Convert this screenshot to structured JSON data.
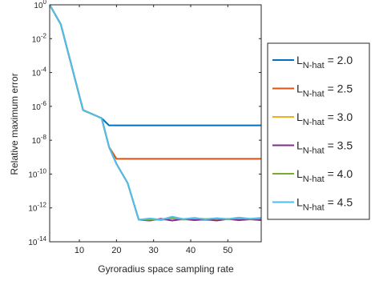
{
  "chart_data": {
    "type": "line",
    "xlabel": "Gyroradius space sampling rate",
    "ylabel": "Relative maximum error",
    "xlim": [
      2,
      59
    ],
    "ylim": [
      1e-14,
      1
    ],
    "yscale": "log",
    "grid": false,
    "legend_position": "outside-right",
    "xticks": [
      {
        "value": 10,
        "label": "10"
      },
      {
        "value": 20,
        "label": "20"
      },
      {
        "value": 30,
        "label": "30"
      },
      {
        "value": 40,
        "label": "40"
      },
      {
        "value": 50,
        "label": "50"
      }
    ],
    "yticks": [
      {
        "value": 1,
        "base": "10",
        "exp": "0"
      },
      {
        "value": 0.01,
        "base": "10",
        "exp": "-2"
      },
      {
        "value": 0.0001,
        "base": "10",
        "exp": "-4"
      },
      {
        "value": 1e-06,
        "base": "10",
        "exp": "-6"
      },
      {
        "value": 1e-08,
        "base": "10",
        "exp": "-8"
      },
      {
        "value": 1e-10,
        "base": "10",
        "exp": "-10"
      },
      {
        "value": 1e-12,
        "base": "10",
        "exp": "-12"
      },
      {
        "value": 1e-14,
        "base": "10",
        "exp": "-14"
      }
    ],
    "series": [
      {
        "name": "L N-hat = 2.0",
        "label_main": "L",
        "label_sub": "N-hat",
        "label_value": " = 2.0",
        "color": "#0072BD",
        "x": [
          2,
          5,
          11,
          16,
          18,
          20,
          26,
          30,
          35,
          40,
          45,
          50,
          55,
          59
        ],
        "y": [
          1,
          0.07,
          6e-07,
          2e-07,
          7.5e-08,
          7.5e-08,
          7.5e-08,
          7.5e-08,
          7.5e-08,
          7.5e-08,
          7.5e-08,
          7.5e-08,
          7.5e-08,
          7.5e-08
        ]
      },
      {
        "name": "L N-hat = 2.5",
        "label_main": "L",
        "label_sub": "N-hat",
        "label_value": " = 2.5",
        "color": "#D95319",
        "x": [
          2,
          5,
          11,
          16,
          18,
          20,
          26,
          30,
          35,
          40,
          45,
          50,
          55,
          59
        ],
        "y": [
          1,
          0.07,
          6e-07,
          2e-07,
          4e-09,
          8e-10,
          8e-10,
          8e-10,
          8e-10,
          8e-10,
          8e-10,
          8e-10,
          8e-10,
          8e-10
        ]
      },
      {
        "name": "L N-hat = 3.0",
        "label_main": "L",
        "label_sub": "N-hat",
        "label_value": " = 3.0",
        "color": "#EDB120",
        "x": [
          2,
          5,
          11,
          16,
          18,
          20,
          23,
          26,
          29,
          32,
          35,
          38,
          41,
          44,
          47,
          50,
          53,
          56,
          59
        ],
        "y": [
          1,
          0.07,
          6e-07,
          2e-07,
          4e-09,
          4e-10,
          3e-11,
          2e-13,
          2.2e-13,
          1.9e-13,
          2.4e-13,
          2e-13,
          2.2e-13,
          1.9e-13,
          2.1e-13,
          2.3e-13,
          2e-13,
          2.2e-13,
          2e-13
        ]
      },
      {
        "name": "L N-hat = 3.5",
        "label_main": "L",
        "label_sub": "N-hat",
        "label_value": " = 3.5",
        "color": "#7E2F8E",
        "x": [
          2,
          5,
          11,
          16,
          18,
          20,
          23,
          26,
          29,
          32,
          35,
          38,
          41,
          44,
          47,
          50,
          53,
          56,
          59
        ],
        "y": [
          1,
          0.07,
          6e-07,
          2e-07,
          4e-09,
          4e-10,
          3e-11,
          2e-13,
          1.8e-13,
          2.3e-13,
          1.8e-13,
          2.2e-13,
          1.9e-13,
          2.1e-13,
          1.8e-13,
          2.2e-13,
          1.9e-13,
          2.1e-13,
          1.9e-13
        ]
      },
      {
        "name": "L N-hat = 4.0",
        "label_main": "L",
        "label_sub": "N-hat",
        "label_value": " = 4.0",
        "color": "#77AC30",
        "x": [
          2,
          5,
          11,
          16,
          18,
          20,
          23,
          26,
          29,
          32,
          35,
          38,
          41,
          44,
          47,
          50,
          53,
          56,
          59
        ],
        "y": [
          1,
          0.07,
          6e-07,
          2e-07,
          4e-09,
          4e-10,
          3e-11,
          2e-13,
          2e-13,
          2.1e-13,
          2.6e-13,
          2.1e-13,
          2.5e-13,
          2.2e-13,
          2.4e-13,
          2.1e-13,
          2.5e-13,
          2.2e-13,
          2.4e-13
        ]
      },
      {
        "name": "L N-hat = 4.5",
        "label_main": "L",
        "label_sub": "N-hat",
        "label_value": " = 4.5",
        "color": "#4DBEEE",
        "x": [
          2,
          5,
          11,
          16,
          18,
          20,
          23,
          26,
          29,
          32,
          35,
          38,
          41,
          44,
          47,
          50,
          53,
          56,
          59
        ],
        "y": [
          1,
          0.07,
          6e-07,
          2e-07,
          4e-09,
          4e-10,
          3e-11,
          2e-13,
          2.4e-13,
          2e-13,
          3e-13,
          2.2e-13,
          2.6e-13,
          2.1e-13,
          2.5e-13,
          2.2e-13,
          2.7e-13,
          2.3e-13,
          2.6e-13
        ]
      }
    ]
  }
}
